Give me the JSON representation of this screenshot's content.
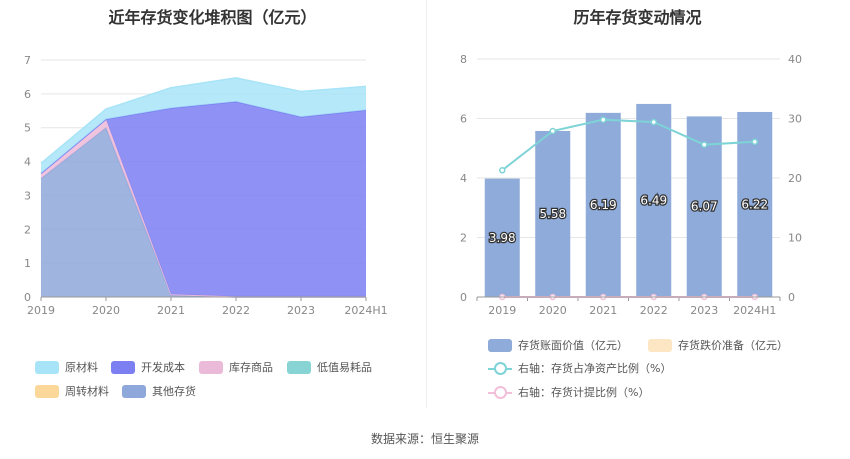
{
  "titles": {
    "left": "近年存货变化堆积图（亿元）",
    "right": "历年存货变动情况"
  },
  "source": "数据来源：恒生聚源",
  "chart_data": [
    {
      "type": "area",
      "title": "近年存货变化堆积图（亿元）",
      "categories": [
        "2019",
        "2020",
        "2021",
        "2022",
        "2023",
        "2024H1"
      ],
      "ylim": [
        0,
        7
      ],
      "yticks": [
        "0",
        "1",
        "2",
        "3",
        "4",
        "5",
        "6",
        "7"
      ],
      "grid": true,
      "legend_position": "bottom",
      "series": [
        {
          "name": "原材料",
          "color": "#a8e4f8",
          "values": [
            0.3,
            0.3,
            0.6,
            0.7,
            0.75,
            0.7
          ]
        },
        {
          "name": "开发成本",
          "color": "#7b7ff2",
          "values": [
            0.0,
            0.0,
            5.5,
            5.75,
            5.3,
            5.5
          ]
        },
        {
          "name": "库存商品",
          "color": "#ebbad9",
          "values": [
            0.15,
            0.25,
            0.03,
            0.02,
            0.02,
            0.02
          ]
        },
        {
          "name": "低值易耗品",
          "color": "#88d4d4",
          "values": [
            0.0,
            0.0,
            0.0,
            0.0,
            0.0,
            0.0
          ]
        },
        {
          "name": "周转材料",
          "color": "#fcd79a",
          "values": [
            0.0,
            0.0,
            0.0,
            0.0,
            0.0,
            0.0
          ]
        },
        {
          "name": "其他存货",
          "color": "#8ea8db",
          "values": [
            3.5,
            5.0,
            0.05,
            0.0,
            0.0,
            0.0
          ]
        }
      ]
    },
    {
      "type": "bar",
      "title": "历年存货变动情况",
      "categories": [
        "2019",
        "2020",
        "2021",
        "2022",
        "2023",
        "2024H1"
      ],
      "ylim": [
        0,
        8
      ],
      "yticks": [
        "0",
        "2",
        "4",
        "6",
        "8"
      ],
      "y2lim": [
        0,
        40
      ],
      "y2ticks": [
        "0",
        "10",
        "20",
        "30",
        "40"
      ],
      "grid": true,
      "legend_position": "bottom",
      "bars": {
        "name": "存货账面价值（亿元）",
        "color": "#8eabda",
        "values": [
          3.98,
          5.58,
          6.19,
          6.49,
          6.07,
          6.22
        ],
        "labels": [
          "3.98",
          "5.58",
          "6.19",
          "6.49",
          "6.07",
          "6.22"
        ]
      },
      "bars2": {
        "name": "存货跌价准备（亿元）",
        "color": "#fde6c4",
        "values": [
          0,
          0,
          0,
          0,
          0,
          0
        ]
      },
      "line1": {
        "name": "右轴：存货占净资产比例（%）",
        "color": "#7ed3d6",
        "values": [
          21.3,
          27.9,
          29.8,
          29.4,
          25.6,
          26.1
        ]
      },
      "line2": {
        "name": "右轴：存货计提比例（%）",
        "color": "#f2bfd9",
        "values": [
          0,
          0,
          0,
          0,
          0,
          0
        ]
      }
    }
  ]
}
